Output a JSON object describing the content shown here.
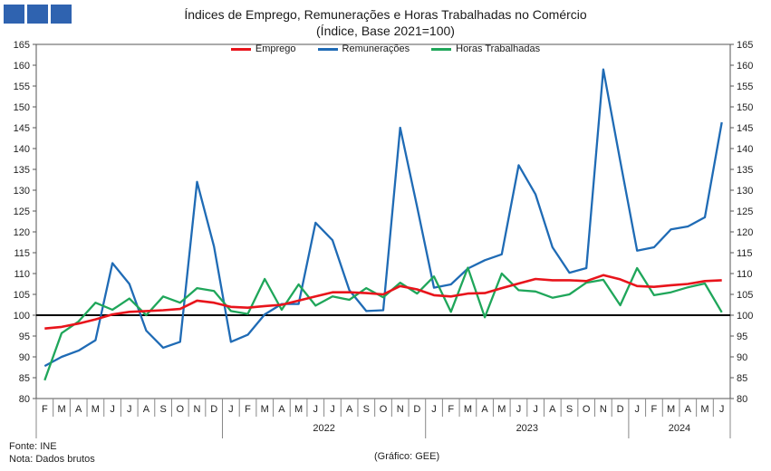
{
  "header": {
    "title": "Índices de Emprego, Remunerações e Horas Trabalhadas no Comércio",
    "subtitle": "(Índice, Base 2021=100)",
    "logo_icon": "ine-logo-blocks"
  },
  "footer": {
    "source": "Fonte: INE",
    "note": "Nota: Dados brutos",
    "credit": "(Gráfico: GEE)"
  },
  "chart_data": {
    "type": "line",
    "title": "Índices de Emprego, Remunerações e Horas Trabalhadas no Comércio",
    "subtitle": "(Índice, Base 2021=100)",
    "ylim": [
      80,
      165
    ],
    "yticks": [
      80,
      85,
      90,
      95,
      100,
      105,
      110,
      115,
      120,
      125,
      130,
      135,
      140,
      145,
      150,
      155,
      160,
      165
    ],
    "months": [
      "F",
      "M",
      "A",
      "M",
      "J",
      "J",
      "A",
      "S",
      "O",
      "N",
      "D",
      "J",
      "F",
      "M",
      "A",
      "M",
      "J",
      "J",
      "A",
      "S",
      "O",
      "N",
      "D",
      "J",
      "F",
      "M",
      "A",
      "M",
      "J",
      "J",
      "A",
      "S",
      "O",
      "N",
      "D",
      "J",
      "F",
      "M",
      "A",
      "M",
      "J"
    ],
    "years": [
      {
        "label": "2022",
        "start": 11,
        "end": 22
      },
      {
        "label": "2023",
        "start": 23,
        "end": 34
      },
      {
        "label": "2024",
        "start": 35,
        "end": 40
      }
    ],
    "reference_line": 100,
    "grid": false,
    "legend_position": "top",
    "series": [
      {
        "name": "Emprego",
        "color": "#e8141b",
        "values": [
          96.8,
          97.2,
          98.0,
          99.0,
          100.2,
          100.8,
          101.0,
          101.2,
          101.5,
          103.5,
          103.0,
          102.0,
          101.8,
          102.2,
          102.5,
          103.5,
          104.5,
          105.5,
          105.5,
          105.3,
          105.0,
          107.0,
          106.2,
          104.8,
          104.5,
          105.2,
          105.3,
          106.5,
          107.6,
          108.7,
          108.4,
          108.4,
          108.2,
          109.6,
          108.6,
          107.0,
          106.8,
          107.2,
          107.5,
          108.2,
          108.4
        ]
      },
      {
        "name": "Remunerações",
        "color": "#1f6bb5",
        "values": [
          87.8,
          90.0,
          91.5,
          94.0,
          112.5,
          107.5,
          96.3,
          92.2,
          93.6,
          132.0,
          116.5,
          93.6,
          95.3,
          100.2,
          102.7,
          102.7,
          122.2,
          118.0,
          106.0,
          101.0,
          101.2,
          145.0,
          126.0,
          106.6,
          107.4,
          111.2,
          113.2,
          114.6,
          136.0,
          129.0,
          116.3,
          110.2,
          111.3,
          159.0,
          137.0,
          115.5,
          116.3,
          120.6,
          121.3,
          123.5,
          146.3
        ]
      },
      {
        "name": "Horas Trabalhadas",
        "color": "#1fa65a",
        "values": [
          84.4,
          95.7,
          98.5,
          103.0,
          101.3,
          104.0,
          100.0,
          104.5,
          103.0,
          106.5,
          105.8,
          101.0,
          100.3,
          108.7,
          101.3,
          107.4,
          102.3,
          104.5,
          103.7,
          106.5,
          104.3,
          107.8,
          105.2,
          109.3,
          100.8,
          111.4,
          99.5,
          110.0,
          106.0,
          105.7,
          104.2,
          105.0,
          107.8,
          108.5,
          102.4,
          111.3,
          104.8,
          105.5,
          106.7,
          107.6,
          100.7
        ]
      }
    ]
  }
}
